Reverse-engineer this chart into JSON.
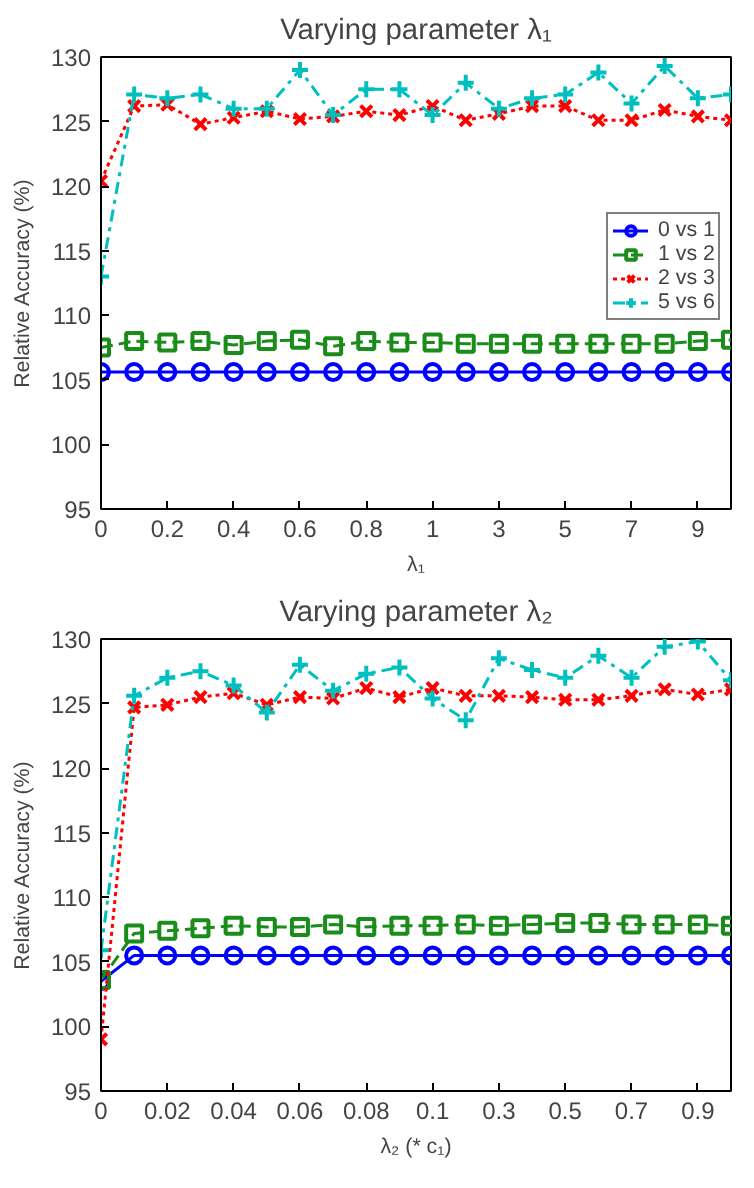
{
  "chart_data": [
    {
      "type": "line",
      "title": "Varying parameter λ₁",
      "xlabel": "λ₁",
      "ylabel": "Relative Accuracy (%)",
      "categories": [
        "0",
        null,
        "0.2",
        null,
        "0.4",
        null,
        "0.6",
        null,
        "0.8",
        null,
        "1",
        null,
        "3",
        null,
        "5",
        null,
        "7",
        null,
        "9",
        null
      ],
      "ylim": [
        95,
        130
      ],
      "yticks": [
        95,
        100,
        105,
        110,
        115,
        120,
        125,
        130
      ],
      "grid": false,
      "legend": "right",
      "series": [
        {
          "name": "0 vs 1",
          "color": "#0000ff",
          "marker": "circle",
          "line_style": "solid",
          "values": [
            105.6,
            105.6,
            105.6,
            105.6,
            105.6,
            105.6,
            105.6,
            105.6,
            105.6,
            105.6,
            105.6,
            105.6,
            105.6,
            105.6,
            105.6,
            105.6,
            105.6,
            105.6,
            105.6,
            105.6
          ]
        },
        {
          "name": "1 vs 2",
          "color": "#1a8c1a",
          "marker": "square",
          "line_style": "dashed",
          "values": [
            107.5,
            108.0,
            107.9,
            108.0,
            107.7,
            108.0,
            108.1,
            107.6,
            108.0,
            107.9,
            107.9,
            107.8,
            107.8,
            107.8,
            107.8,
            107.8,
            107.8,
            107.8,
            108.0,
            108.1
          ]
        },
        {
          "name": "2 vs 3",
          "color": "#ff0000",
          "marker": "x",
          "line_style": "dotted",
          "values": [
            120.4,
            126.2,
            126.3,
            124.8,
            125.3,
            125.8,
            125.2,
            125.4,
            125.8,
            125.5,
            126.2,
            125.1,
            125.6,
            126.2,
            126.2,
            125.1,
            125.1,
            125.9,
            125.4,
            125.1
          ]
        },
        {
          "name": "5 vs 6",
          "color": "#00bfbf",
          "marker": "cross",
          "line_style": "dashdot",
          "values": [
            113.0,
            127.1,
            126.8,
            127.1,
            126.0,
            126.0,
            129.0,
            125.5,
            127.5,
            127.5,
            125.5,
            128.0,
            126.0,
            126.8,
            127.1,
            128.8,
            126.4,
            129.3,
            126.8,
            127.1
          ]
        }
      ]
    },
    {
      "type": "line",
      "title": "Varying parameter λ₂",
      "xlabel": "λ₂ (* c₁)",
      "ylabel": "Relative Accuracy (%)",
      "categories": [
        "0",
        null,
        "0.02",
        null,
        "0.04",
        null,
        "0.06",
        null,
        "0.08",
        null,
        "0.1",
        null,
        "0.3",
        null,
        "0.5",
        null,
        "0.7",
        null,
        "0.9",
        null
      ],
      "ylim": [
        95,
        130
      ],
      "yticks": [
        95,
        100,
        105,
        110,
        115,
        120,
        125,
        130
      ],
      "grid": false,
      "legend": false,
      "series": [
        {
          "color": "#0000ff",
          "marker": "circle",
          "line_style": "solid",
          "values": [
            103.5,
            105.5,
            105.5,
            105.5,
            105.5,
            105.5,
            105.5,
            105.5,
            105.5,
            105.5,
            105.5,
            105.5,
            105.5,
            105.5,
            105.5,
            105.5,
            105.5,
            105.5,
            105.5,
            105.5
          ]
        },
        {
          "color": "#1a8c1a",
          "marker": "square",
          "line_style": "dashed",
          "values": [
            103.6,
            107.2,
            107.4,
            107.6,
            107.8,
            107.7,
            107.7,
            107.9,
            107.7,
            107.8,
            107.8,
            107.9,
            107.8,
            107.9,
            108.0,
            108.0,
            107.9,
            107.9,
            107.9,
            107.8
          ]
        },
        {
          "color": "#ff0000",
          "marker": "x",
          "line_style": "dotted",
          "values": [
            99.0,
            124.7,
            124.9,
            125.5,
            125.8,
            124.9,
            125.5,
            125.4,
            126.2,
            125.5,
            126.2,
            125.6,
            125.6,
            125.5,
            125.3,
            125.3,
            125.6,
            126.1,
            125.7,
            126.1
          ]
        },
        {
          "color": "#00bfbf",
          "marker": "cross",
          "line_style": "dashdot",
          "values": [
            105.9,
            125.6,
            127.0,
            127.5,
            126.4,
            124.3,
            128.0,
            126.0,
            127.3,
            127.8,
            125.4,
            123.7,
            128.5,
            127.6,
            127.0,
            128.7,
            127.0,
            129.4,
            129.8,
            126.8
          ]
        }
      ]
    }
  ]
}
